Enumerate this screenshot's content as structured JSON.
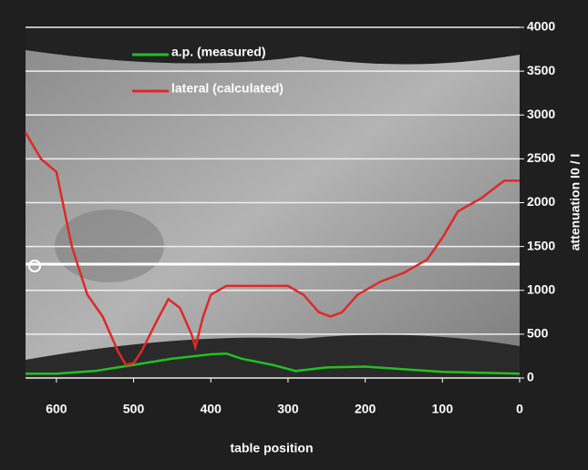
{
  "chart_data": {
    "type": "line",
    "xlabel": "table position",
    "ylabel": "attenuation I0 / I",
    "xlim": [
      640,
      0
    ],
    "xticks": [
      600,
      500,
      400,
      300,
      200,
      100,
      0
    ],
    "ylim": [
      0,
      4000
    ],
    "yticks": [
      0,
      500,
      1000,
      1500,
      2000,
      2500,
      3000,
      3500,
      4000
    ],
    "grid": true,
    "legend": "top-left",
    "series": [
      {
        "name": "a.p. (measured)",
        "color": "#22c022",
        "x": [
          640,
          600,
          550,
          500,
          450,
          400,
          380,
          360,
          320,
          290,
          250,
          200,
          150,
          100,
          50,
          0
        ],
        "values": [
          50,
          50,
          80,
          150,
          220,
          270,
          280,
          220,
          150,
          80,
          120,
          130,
          100,
          70,
          60,
          50
        ]
      },
      {
        "name": "lateral (calculated)",
        "color": "#e02828",
        "x": [
          640,
          620,
          600,
          580,
          560,
          540,
          520,
          510,
          500,
          490,
          470,
          455,
          440,
          425,
          420,
          410,
          400,
          380,
          350,
          300,
          280,
          260,
          245,
          230,
          210,
          180,
          150,
          120,
          100,
          80,
          50,
          20,
          0
        ],
        "values": [
          2800,
          2500,
          2350,
          1500,
          950,
          700,
          300,
          150,
          170,
          300,
          650,
          900,
          800,
          500,
          350,
          700,
          950,
          1050,
          1050,
          1050,
          950,
          750,
          700,
          750,
          950,
          1100,
          1200,
          1350,
          1600,
          1900,
          2050,
          2250,
          2250
        ]
      }
    ]
  }
}
